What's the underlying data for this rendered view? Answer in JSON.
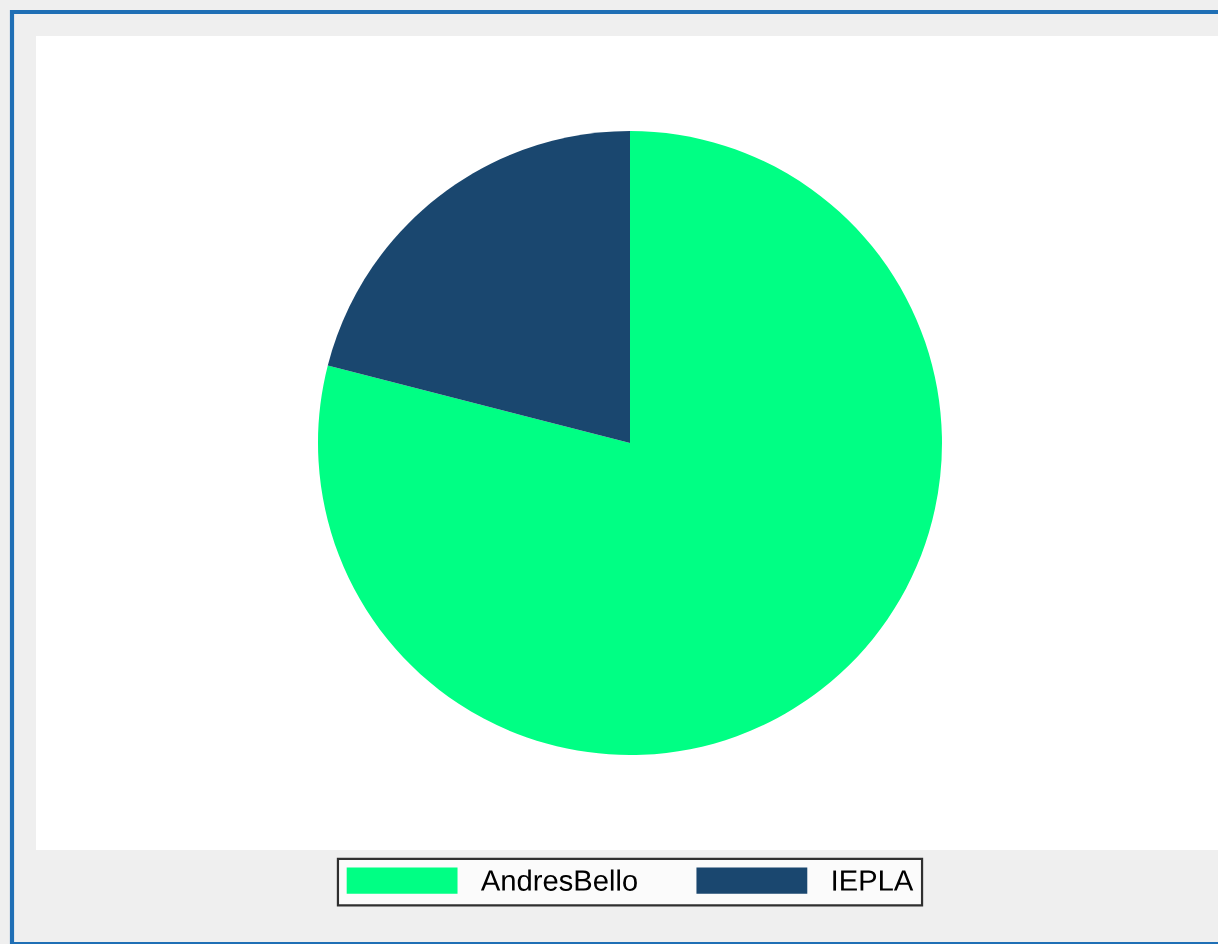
{
  "chart_data": {
    "type": "pie",
    "categories": [
      "AndresBello",
      "IEPLA"
    ],
    "values": [
      79,
      21
    ],
    "colors": [
      "#00ff84",
      "#1a476f"
    ],
    "legend": "bottom"
  }
}
